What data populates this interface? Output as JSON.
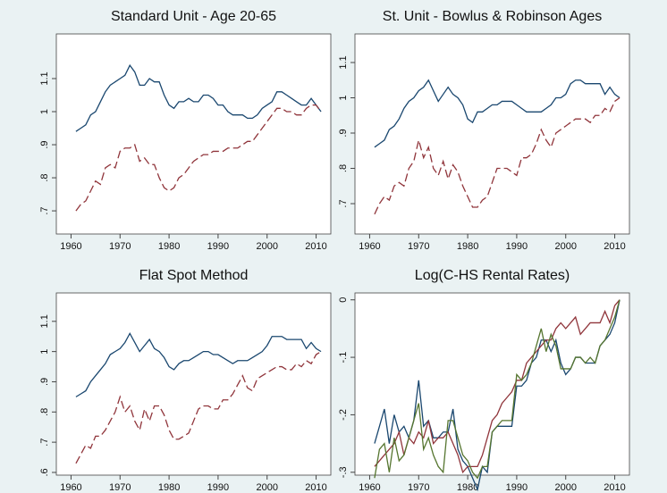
{
  "chart_data": [
    {
      "type": "line",
      "title": "Standard Unit - Age 20-65",
      "xlim": [
        1957,
        2013
      ],
      "xticks": [
        1960,
        1970,
        1980,
        1990,
        2000,
        2010
      ],
      "ylim": [
        0.63,
        1.235
      ],
      "yticks": [
        {
          "value": 0.7,
          "label": ".7"
        },
        {
          "value": 0.8,
          "label": ".8"
        },
        {
          "value": 0.9,
          "label": ".9"
        },
        1,
        1.1
      ],
      "x": [
        1961,
        1962,
        1963,
        1964,
        1965,
        1966,
        1967,
        1968,
        1969,
        1970,
        1971,
        1972,
        1973,
        1974,
        1975,
        1976,
        1977,
        1978,
        1979,
        1980,
        1981,
        1982,
        1983,
        1984,
        1985,
        1986,
        1987,
        1988,
        1989,
        1990,
        1991,
        1992,
        1993,
        1994,
        1995,
        1996,
        1997,
        1998,
        1999,
        2000,
        2001,
        2002,
        2003,
        2004,
        2005,
        2006,
        2007,
        2008,
        2009,
        2010,
        2011
      ],
      "series": [
        {
          "color": "#1a476f",
          "dashed": false,
          "values": [
            0.94,
            0.95,
            0.96,
            0.99,
            1.0,
            1.03,
            1.06,
            1.08,
            1.09,
            1.1,
            1.11,
            1.14,
            1.12,
            1.08,
            1.08,
            1.1,
            1.09,
            1.09,
            1.05,
            1.02,
            1.01,
            1.03,
            1.03,
            1.04,
            1.03,
            1.03,
            1.05,
            1.05,
            1.04,
            1.02,
            1.02,
            1.0,
            0.99,
            0.99,
            0.99,
            0.98,
            0.98,
            0.99,
            1.01,
            1.02,
            1.03,
            1.06,
            1.06,
            1.05,
            1.04,
            1.03,
            1.02,
            1.02,
            1.04,
            1.02,
            1.0
          ]
        },
        {
          "color": "#90353b",
          "dashed": true,
          "values": [
            0.7,
            0.72,
            0.73,
            0.76,
            0.79,
            0.78,
            0.83,
            0.84,
            0.83,
            0.88,
            0.89,
            0.89,
            0.9,
            0.85,
            0.86,
            0.84,
            0.84,
            0.8,
            0.77,
            0.76,
            0.77,
            0.8,
            0.81,
            0.83,
            0.85,
            0.86,
            0.87,
            0.87,
            0.88,
            0.88,
            0.88,
            0.89,
            0.89,
            0.89,
            0.9,
            0.91,
            0.91,
            0.93,
            0.95,
            0.97,
            0.99,
            1.01,
            1.01,
            1.0,
            1.0,
            0.99,
            0.99,
            1.01,
            1.02,
            1.02,
            1.0
          ]
        }
      ]
    },
    {
      "type": "line",
      "title": "St. Unit - Bowlus & Robinson Ages",
      "xlim": [
        1957,
        2013
      ],
      "xticks": [
        1960,
        1970,
        1980,
        1990,
        2000,
        2010
      ],
      "ylim": [
        0.614,
        1.181
      ],
      "yticks": [
        {
          "value": 0.7,
          "label": ".7"
        },
        {
          "value": 0.8,
          "label": ".8"
        },
        {
          "value": 0.9,
          "label": ".9"
        },
        1,
        1.1
      ],
      "x": [
        1961,
        1962,
        1963,
        1964,
        1965,
        1966,
        1967,
        1968,
        1969,
        1970,
        1971,
        1972,
        1973,
        1974,
        1975,
        1976,
        1977,
        1978,
        1979,
        1980,
        1981,
        1982,
        1983,
        1984,
        1985,
        1986,
        1987,
        1988,
        1989,
        1990,
        1991,
        1992,
        1993,
        1994,
        1995,
        1996,
        1997,
        1998,
        1999,
        2000,
        2001,
        2002,
        2003,
        2004,
        2005,
        2006,
        2007,
        2008,
        2009,
        2010,
        2011
      ],
      "series": [
        {
          "color": "#1a476f",
          "dashed": false,
          "values": [
            0.86,
            0.87,
            0.88,
            0.91,
            0.92,
            0.94,
            0.97,
            0.99,
            1.0,
            1.02,
            1.03,
            1.05,
            1.02,
            0.99,
            1.01,
            1.03,
            1.01,
            1.0,
            0.98,
            0.94,
            0.93,
            0.96,
            0.96,
            0.97,
            0.98,
            0.98,
            0.99,
            0.99,
            0.99,
            0.98,
            0.97,
            0.96,
            0.96,
            0.96,
            0.96,
            0.97,
            0.98,
            1.0,
            1.0,
            1.01,
            1.04,
            1.05,
            1.05,
            1.04,
            1.04,
            1.04,
            1.04,
            1.01,
            1.03,
            1.01,
            1.0
          ]
        },
        {
          "color": "#90353b",
          "dashed": true,
          "values": [
            0.67,
            0.7,
            0.72,
            0.71,
            0.75,
            0.76,
            0.75,
            0.8,
            0.82,
            0.88,
            0.83,
            0.86,
            0.8,
            0.78,
            0.82,
            0.77,
            0.81,
            0.79,
            0.75,
            0.72,
            0.69,
            0.69,
            0.71,
            0.72,
            0.76,
            0.8,
            0.8,
            0.8,
            0.79,
            0.78,
            0.83,
            0.83,
            0.84,
            0.87,
            0.91,
            0.88,
            0.86,
            0.9,
            0.91,
            0.92,
            0.93,
            0.94,
            0.94,
            0.94,
            0.93,
            0.95,
            0.95,
            0.97,
            0.96,
            0.99,
            1.0
          ]
        }
      ]
    },
    {
      "type": "line",
      "title": "Flat Spot Method",
      "xlim": [
        1957,
        2013
      ],
      "xticks": [
        1960,
        1970,
        1980,
        1990,
        2000,
        2010
      ],
      "ylim": [
        0.591,
        1.194
      ],
      "yticks": [
        {
          "value": 0.6,
          "label": ".6"
        },
        {
          "value": 0.7,
          "label": ".7"
        },
        {
          "value": 0.8,
          "label": ".8"
        },
        {
          "value": 0.9,
          "label": ".9"
        },
        1,
        1.1
      ],
      "x": [
        1961,
        1962,
        1963,
        1964,
        1965,
        1966,
        1967,
        1968,
        1969,
        1970,
        1971,
        1972,
        1973,
        1974,
        1975,
        1976,
        1977,
        1978,
        1979,
        1980,
        1981,
        1982,
        1983,
        1984,
        1985,
        1986,
        1987,
        1988,
        1989,
        1990,
        1991,
        1992,
        1993,
        1994,
        1995,
        1996,
        1997,
        1998,
        1999,
        2000,
        2001,
        2002,
        2003,
        2004,
        2005,
        2006,
        2007,
        2008,
        2009,
        2010,
        2011
      ],
      "series": [
        {
          "color": "#1a476f",
          "dashed": false,
          "values": [
            0.85,
            0.86,
            0.87,
            0.9,
            0.92,
            0.94,
            0.96,
            0.99,
            1.0,
            1.01,
            1.03,
            1.06,
            1.03,
            1.0,
            1.02,
            1.04,
            1.01,
            1.0,
            0.98,
            0.95,
            0.94,
            0.96,
            0.97,
            0.97,
            0.98,
            0.99,
            1.0,
            1.0,
            0.99,
            0.99,
            0.98,
            0.97,
            0.96,
            0.97,
            0.97,
            0.97,
            0.98,
            0.99,
            1.0,
            1.02,
            1.05,
            1.05,
            1.05,
            1.04,
            1.04,
            1.04,
            1.04,
            1.01,
            1.03,
            1.01,
            1.0
          ]
        },
        {
          "color": "#90353b",
          "dashed": true,
          "values": [
            0.63,
            0.66,
            0.69,
            0.68,
            0.72,
            0.72,
            0.74,
            0.77,
            0.8,
            0.85,
            0.8,
            0.82,
            0.77,
            0.74,
            0.81,
            0.77,
            0.82,
            0.82,
            0.79,
            0.74,
            0.71,
            0.71,
            0.72,
            0.73,
            0.77,
            0.81,
            0.82,
            0.82,
            0.81,
            0.81,
            0.84,
            0.84,
            0.86,
            0.89,
            0.92,
            0.88,
            0.87,
            0.91,
            0.92,
            0.93,
            0.94,
            0.95,
            0.95,
            0.94,
            0.94,
            0.96,
            0.95,
            0.97,
            0.96,
            0.99,
            1.0
          ]
        }
      ]
    },
    {
      "type": "line",
      "title": "Log(C-HS Rental Rates)",
      "xlim": [
        1957,
        2013
      ],
      "xticks": [
        1960,
        1970,
        1980,
        1990,
        2000,
        2010
      ],
      "ylim": [
        -0.305,
        0.012
      ],
      "yticks": [
        {
          "value": -0.3,
          "label": "-.3"
        },
        {
          "value": -0.2,
          "label": "-.2"
        },
        {
          "value": -0.1,
          "label": "-.1"
        },
        0
      ],
      "x": [
        1961,
        1962,
        1963,
        1964,
        1965,
        1966,
        1967,
        1968,
        1969,
        1970,
        1971,
        1972,
        1973,
        1974,
        1975,
        1976,
        1977,
        1978,
        1979,
        1980,
        1981,
        1982,
        1983,
        1984,
        1985,
        1986,
        1987,
        1988,
        1989,
        1990,
        1991,
        1992,
        1993,
        1994,
        1995,
        1996,
        1997,
        1998,
        1999,
        2000,
        2001,
        2002,
        2003,
        2004,
        2005,
        2006,
        2007,
        2008,
        2009,
        2010,
        2011
      ],
      "series": [
        {
          "color": "#1a476f",
          "dashed": false,
          "values": [
            -0.25,
            -0.22,
            -0.19,
            -0.25,
            -0.2,
            -0.23,
            -0.22,
            -0.24,
            -0.21,
            -0.14,
            -0.22,
            -0.21,
            -0.24,
            -0.24,
            -0.23,
            -0.23,
            -0.19,
            -0.26,
            -0.28,
            -0.29,
            -0.31,
            -0.33,
            -0.29,
            -0.3,
            -0.23,
            -0.22,
            -0.22,
            -0.22,
            -0.22,
            -0.15,
            -0.15,
            -0.14,
            -0.11,
            -0.1,
            -0.07,
            -0.07,
            -0.09,
            -0.07,
            -0.11,
            -0.13,
            -0.12,
            -0.1,
            -0.1,
            -0.11,
            -0.11,
            -0.11,
            -0.08,
            -0.07,
            -0.06,
            -0.04,
            0
          ]
        },
        {
          "color": "#90353b",
          "dashed": false,
          "values": [
            -0.29,
            -0.28,
            -0.27,
            -0.26,
            -0.25,
            -0.23,
            -0.27,
            -0.24,
            -0.25,
            -0.23,
            -0.24,
            -0.21,
            -0.25,
            -0.24,
            -0.24,
            -0.23,
            -0.25,
            -0.27,
            -0.3,
            -0.29,
            -0.29,
            -0.29,
            -0.27,
            -0.24,
            -0.21,
            -0.2,
            -0.18,
            -0.17,
            -0.16,
            -0.14,
            -0.14,
            -0.11,
            -0.1,
            -0.09,
            -0.08,
            -0.07,
            -0.07,
            -0.05,
            -0.04,
            -0.05,
            -0.04,
            -0.03,
            -0.06,
            -0.05,
            -0.04,
            -0.04,
            -0.04,
            -0.02,
            -0.04,
            -0.01,
            0
          ]
        },
        {
          "color": "#55752f",
          "dashed": false,
          "values": [
            -0.31,
            -0.26,
            -0.25,
            -0.3,
            -0.24,
            -0.28,
            -0.27,
            -0.24,
            -0.21,
            -0.18,
            -0.26,
            -0.24,
            -0.27,
            -0.29,
            -0.3,
            -0.21,
            -0.21,
            -0.24,
            -0.27,
            -0.28,
            -0.3,
            -0.31,
            -0.29,
            -0.29,
            -0.23,
            -0.22,
            -0.21,
            -0.21,
            -0.21,
            -0.13,
            -0.14,
            -0.13,
            -0.11,
            -0.08,
            -0.05,
            -0.09,
            -0.06,
            -0.08,
            -0.12,
            -0.12,
            -0.12,
            -0.1,
            -0.1,
            -0.11,
            -0.1,
            -0.11,
            -0.08,
            -0.07,
            -0.05,
            -0.03,
            0
          ]
        }
      ]
    }
  ]
}
